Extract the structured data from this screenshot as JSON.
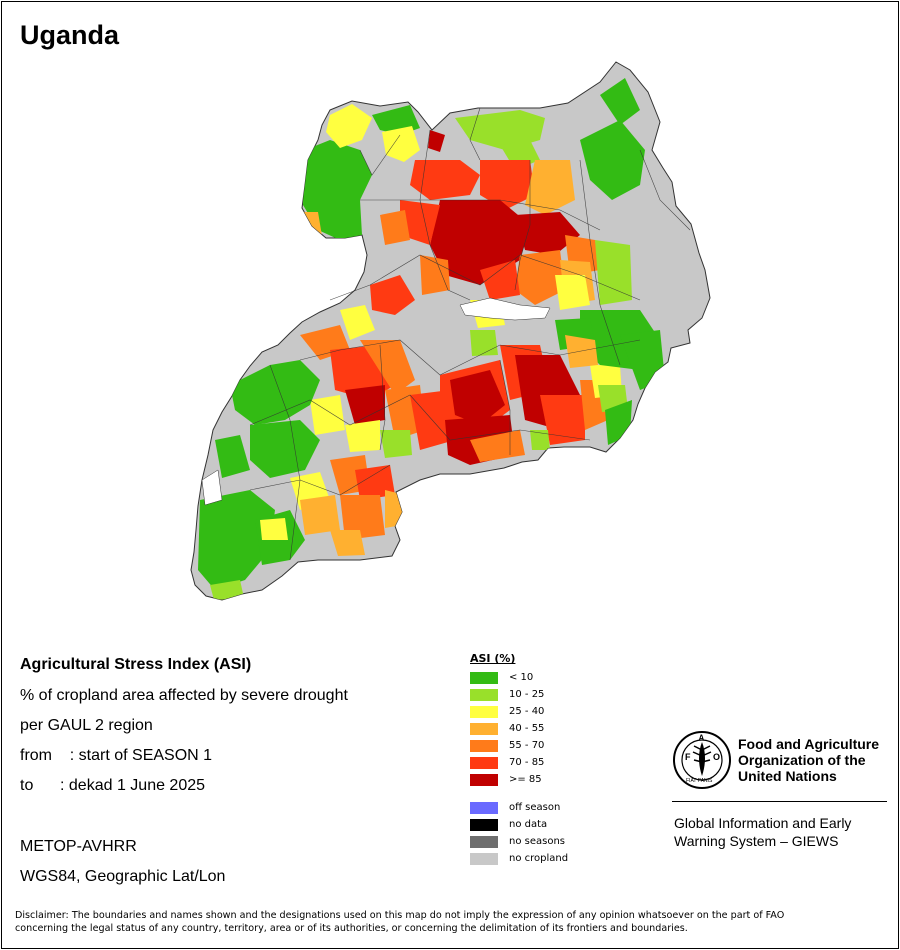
{
  "title": "Uganda",
  "info": {
    "heading": "Agricultural Stress Index (ASI)",
    "line1": "% of cropland area affected by severe drought",
    "line2": "per GAUL 2 region",
    "from": "from    : start of SEASON 1",
    "to": "to      : dekad 1 June 2025",
    "sensor": "METOP-AVHRR",
    "projection": "WGS84, Geographic Lat/Lon"
  },
  "legend": {
    "title": "ASI (%)",
    "classes": [
      {
        "label": "< 10",
        "color": "#33bb14"
      },
      {
        "label": "10 - 25",
        "color": "#99e02a"
      },
      {
        "label": "25 - 40",
        "color": "#ffff40"
      },
      {
        "label": "40 - 55",
        "color": "#ffb030"
      },
      {
        "label": "55 - 70",
        "color": "#ff7b1a"
      },
      {
        "label": "70 - 85",
        "color": "#ff3a12"
      },
      {
        "label": ">= 85",
        "color": "#c00000"
      }
    ],
    "other": [
      {
        "label": "off season",
        "color": "#6a6aff"
      },
      {
        "label": "no data",
        "color": "#000000"
      },
      {
        "label": "no seasons",
        "color": "#6e6e6e"
      },
      {
        "label": "no cropland",
        "color": "#c8c8c8"
      }
    ]
  },
  "fao": {
    "name_line1": "Food and Agriculture",
    "name_line2": "Organization of the",
    "name_line3": "United Nations",
    "sub_line1": "Global Information and Early",
    "sub_line2": "Warning System – GIEWS",
    "logo_text": "FIAT PANIS"
  },
  "disclaimer_line1": "Disclaimer: The boundaries and names shown and the designations used on this map do not imply the expression of any opinion whatsoever on the part of FAO",
  "disclaimer_line2": "concerning the legal status of any country, territory, area or of its authorities, or concerning the delimitation of its frontiers and boundaries."
}
